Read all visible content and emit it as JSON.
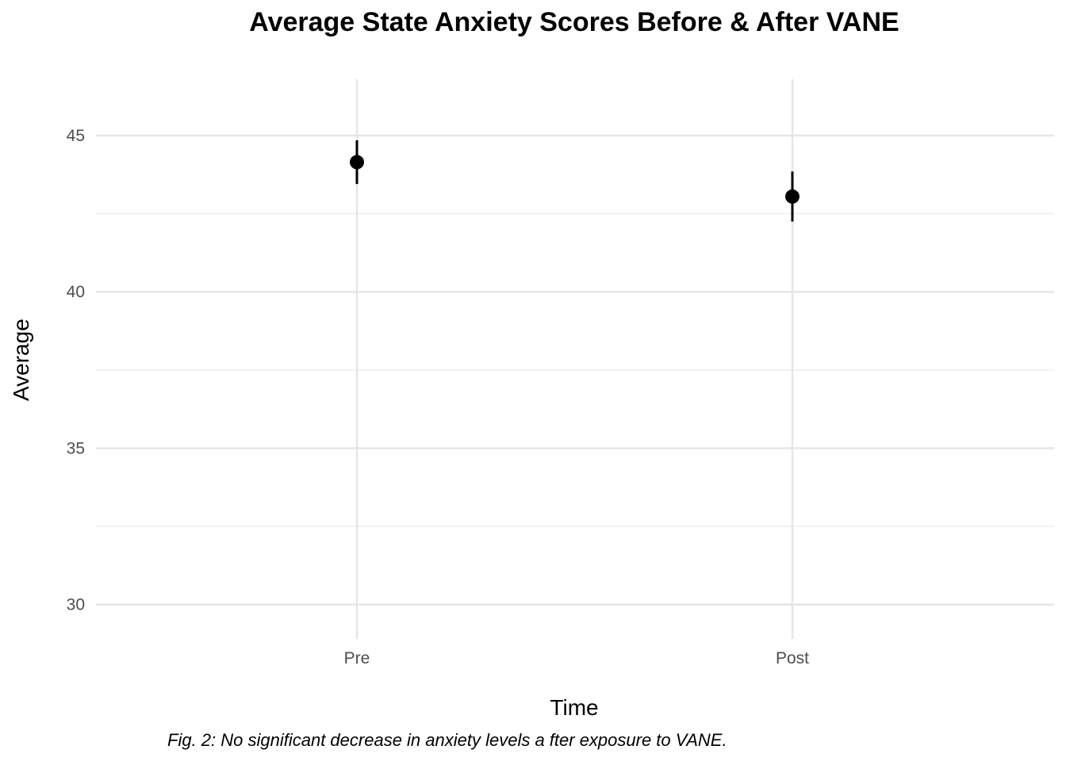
{
  "chart_data": {
    "type": "scatter",
    "title": "Average State Anxiety Scores Before & After VANE",
    "xlabel": "Time",
    "ylabel": "Average",
    "categories": [
      "Pre",
      "Post"
    ],
    "series": [
      {
        "values": [
          44.15,
          43.05
        ],
        "error_lower": [
          43.45,
          42.25
        ],
        "error_upper": [
          44.85,
          43.85
        ]
      }
    ],
    "ylim": [
      28.9,
      46.8
    ],
    "yticks": [
      30,
      35,
      40,
      45
    ],
    "grid": true,
    "legend": "none",
    "caption": "Fig. 2: No significant decrease in anxiety levels a fter exposure to VANE.",
    "colors": {
      "point": "#000000",
      "grid": "#e5e5e5",
      "tick_label": "#4d4d4d"
    }
  }
}
